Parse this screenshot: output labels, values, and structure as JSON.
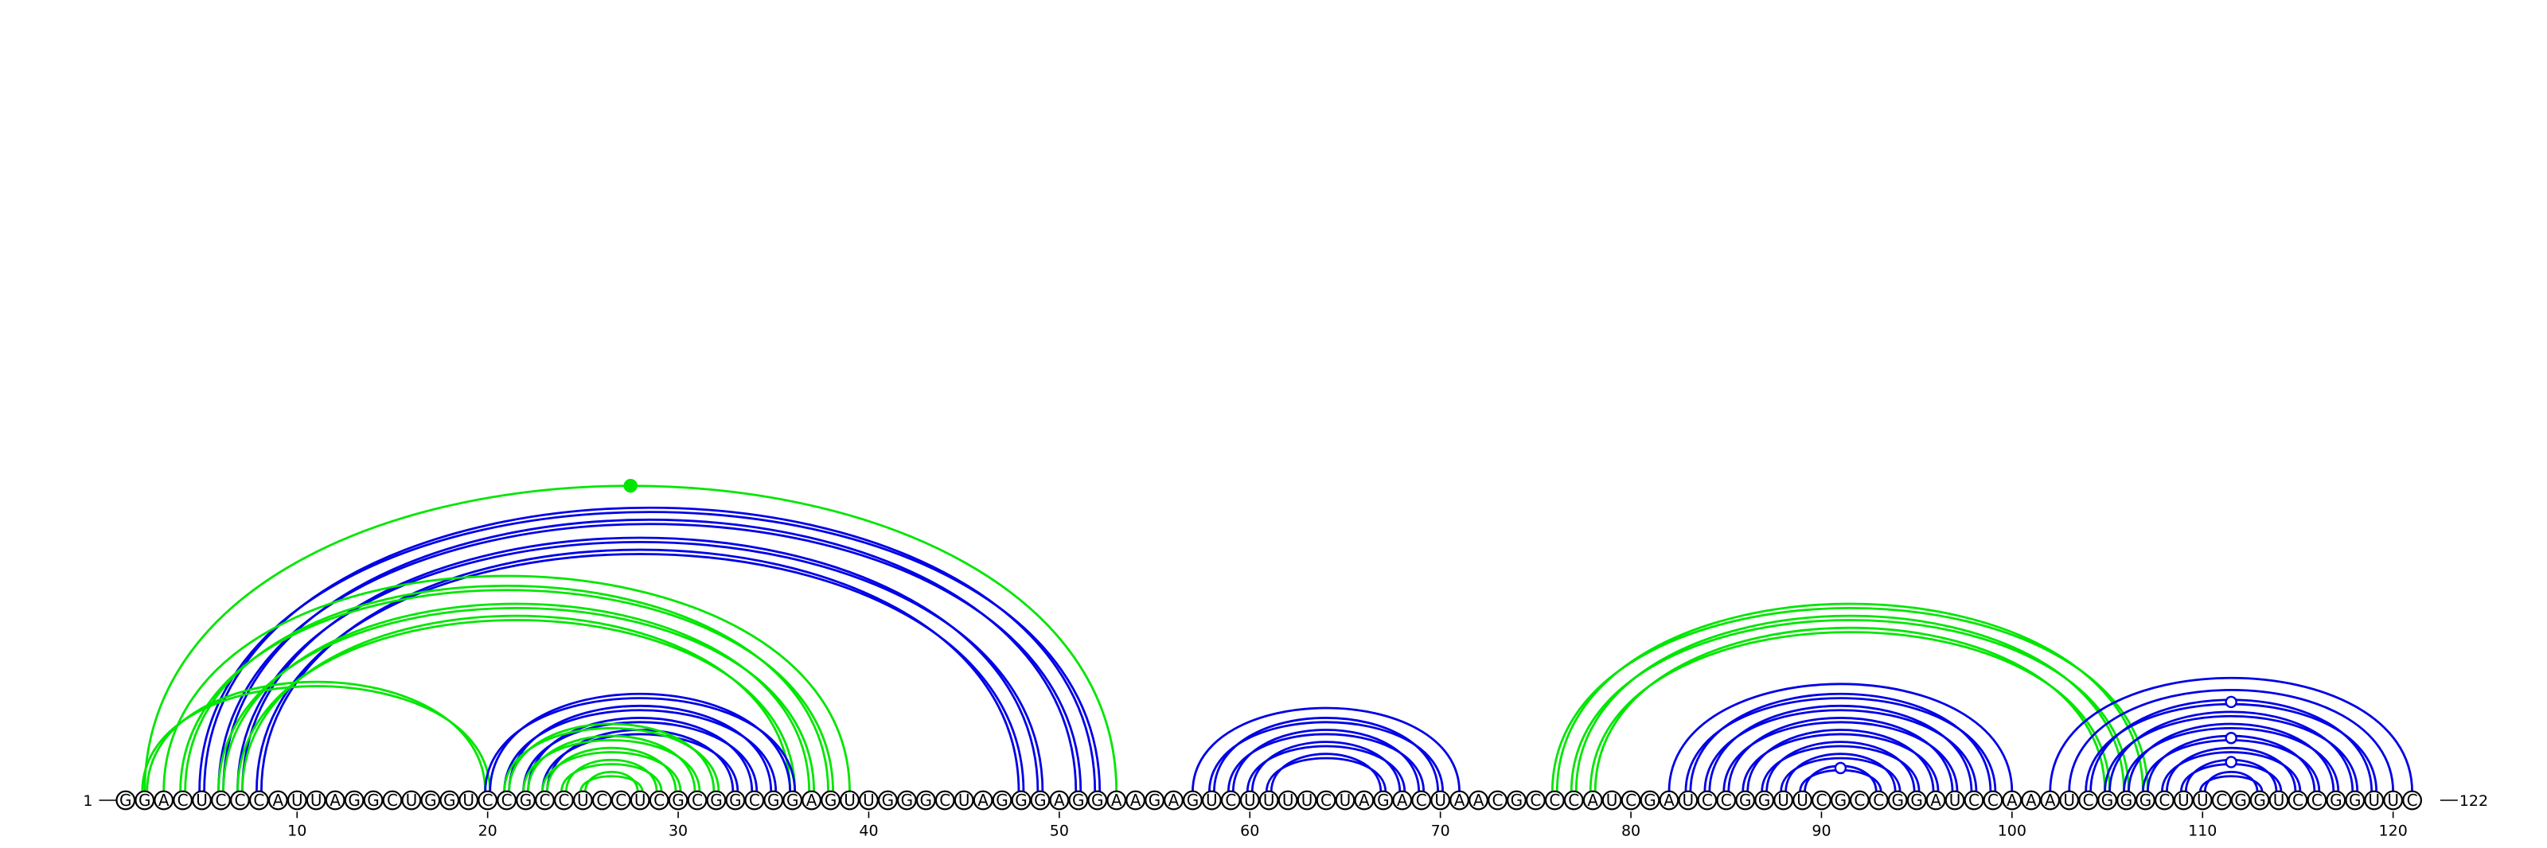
{
  "sequence": "GGACUCCCAUUAGGCUGGUCCGCCUCCUCGCGGCGGAGUUGGGCUAGGGAGGAAGAGUCUUUUCUAGACUAACGCCCAUCGAUCCGGUUCGCCGGAUCCAAAUCGGGCUUCGGUCCGGUUC",
  "length": 122,
  "start_label": "1",
  "end_label": "122",
  "tick_labels": [
    "10",
    "20",
    "30",
    "40",
    "50",
    "60",
    "70",
    "80",
    "90",
    "100",
    "110",
    "120"
  ],
  "tick_positions": [
    10,
    20,
    30,
    40,
    50,
    60,
    70,
    80,
    90,
    100,
    110,
    120
  ],
  "colors": {
    "blue": "#0000e6",
    "green": "#00e600",
    "backbone": "#000000",
    "nucleotide_fill": "#ffffff"
  },
  "arcs": [
    {
      "i": 5,
      "j": 52,
      "color": "blue",
      "double": true
    },
    {
      "i": 6,
      "j": 51,
      "color": "blue",
      "double": true
    },
    {
      "i": 7,
      "j": 49,
      "color": "blue",
      "double": true
    },
    {
      "i": 8,
      "j": 48,
      "color": "blue",
      "double": true
    },
    {
      "i": 2,
      "j": 53,
      "color": "green",
      "double": false
    },
    {
      "i": 3,
      "j": 39,
      "color": "green",
      "double": false
    },
    {
      "i": 4,
      "j": 38,
      "color": "green",
      "double": true
    },
    {
      "i": 6,
      "j": 37,
      "color": "green",
      "double": true
    },
    {
      "i": 7,
      "j": 36,
      "color": "green",
      "double": true
    },
    {
      "i": 2,
      "j": 20,
      "color": "green",
      "double": true
    },
    {
      "i": 20,
      "j": 36,
      "color": "blue",
      "double": true
    },
    {
      "i": 21,
      "j": 35,
      "color": "blue",
      "double": true
    },
    {
      "i": 22,
      "j": 34,
      "color": "blue",
      "double": true
    },
    {
      "i": 23,
      "j": 33,
      "color": "blue",
      "double": true
    },
    {
      "i": 21,
      "j": 32,
      "color": "green",
      "double": true
    },
    {
      "i": 22,
      "j": 31,
      "color": "green",
      "double": true
    },
    {
      "i": 23,
      "j": 30,
      "color": "green",
      "double": true
    },
    {
      "i": 24,
      "j": 29,
      "color": "green",
      "double": true
    },
    {
      "i": 25,
      "j": 28,
      "color": "green",
      "double": true
    },
    {
      "i": 57,
      "j": 71,
      "color": "blue",
      "double": false
    },
    {
      "i": 58,
      "j": 70,
      "color": "blue",
      "double": true
    },
    {
      "i": 59,
      "j": 69,
      "color": "blue",
      "double": true
    },
    {
      "i": 60,
      "j": 68,
      "color": "blue",
      "double": true
    },
    {
      "i": 61,
      "j": 67,
      "color": "blue",
      "double": true
    },
    {
      "i": 76,
      "j": 107,
      "color": "green",
      "double": true
    },
    {
      "i": 77,
      "j": 106,
      "color": "green",
      "double": true
    },
    {
      "i": 78,
      "j": 105,
      "color": "green",
      "double": true
    },
    {
      "i": 82,
      "j": 100,
      "color": "blue",
      "double": false
    },
    {
      "i": 83,
      "j": 99,
      "color": "blue",
      "double": true
    },
    {
      "i": 84,
      "j": 98,
      "color": "blue",
      "double": true
    },
    {
      "i": 85,
      "j": 97,
      "color": "blue",
      "double": true
    },
    {
      "i": 86,
      "j": 96,
      "color": "blue",
      "double": true
    },
    {
      "i": 87,
      "j": 95,
      "color": "blue",
      "double": true
    },
    {
      "i": 88,
      "j": 94,
      "color": "blue",
      "double": true
    },
    {
      "i": 89,
      "j": 93,
      "color": "blue",
      "double": true
    },
    {
      "i": 102,
      "j": 121,
      "color": "blue",
      "double": false
    },
    {
      "i": 103,
      "j": 120,
      "color": "blue",
      "double": false
    },
    {
      "i": 104,
      "j": 119,
      "color": "blue",
      "double": true
    },
    {
      "i": 105,
      "j": 118,
      "color": "blue",
      "double": true
    },
    {
      "i": 106,
      "j": 117,
      "color": "blue",
      "double": true
    },
    {
      "i": 107,
      "j": 116,
      "color": "blue",
      "double": true
    },
    {
      "i": 108,
      "j": 115,
      "color": "blue",
      "double": true
    },
    {
      "i": 109,
      "j": 114,
      "color": "blue",
      "double": true
    },
    {
      "i": 110,
      "j": 113,
      "color": "blue",
      "double": true
    }
  ],
  "markers": [
    {
      "i": 2,
      "j": 53,
      "color": "green",
      "filled": true
    },
    {
      "i": 89,
      "j": 93,
      "color": "blue",
      "filled": false
    },
    {
      "i": 104,
      "j": 119,
      "color": "blue",
      "filled": false
    },
    {
      "i": 107,
      "j": 116,
      "color": "blue",
      "filled": false
    },
    {
      "i": 109,
      "j": 114,
      "color": "blue",
      "filled": false
    }
  ]
}
